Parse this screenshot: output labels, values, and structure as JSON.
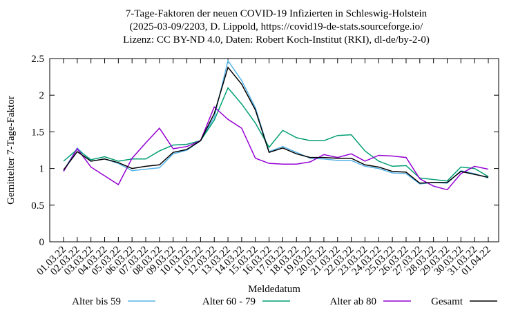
{
  "chart_data": {
    "type": "line",
    "title": [
      "7-Tage-Faktoren der neuen COVID-19 Infizierten in Schleswig-Holstein",
      "(2025-03-09/2203, D. Lippold, https://covid19-de-stats.sourceforge.io/",
      "Lizenz: CC BY-ND 4.0, Daten: Robert Koch-Institut (RKI), dl-de/by-2-0)"
    ],
    "xlabel": "Meldedatum",
    "ylabel": "Gemittelter 7-Tage-Faktor",
    "categories": [
      "01.03.22",
      "02.03.22",
      "03.03.22",
      "04.03.22",
      "05.03.22",
      "06.03.22",
      "07.03.22",
      "08.03.22",
      "09.03.22",
      "10.03.22",
      "11.03.22",
      "12.03.22",
      "13.03.22",
      "14.03.22",
      "15.03.22",
      "16.03.22",
      "17.03.22",
      "18.03.22",
      "19.03.22",
      "20.03.22",
      "21.03.22",
      "22.03.22",
      "23.03.22",
      "24.03.22",
      "25.03.22",
      "26.03.22",
      "27.03.22",
      "28.03.22",
      "29.03.22",
      "30.03.22",
      "31.03.22",
      "01.04.22"
    ],
    "ylim": [
      0,
      2.5
    ],
    "yticks": [
      0,
      0.5,
      1,
      1.5,
      2,
      2.5
    ],
    "grid": false,
    "legend": "bottom",
    "series": [
      {
        "name": "Alter bis 59",
        "color": "#56b4e9",
        "values": [
          0.97,
          1.28,
          1.1,
          1.13,
          1.07,
          0.97,
          0.99,
          1.01,
          1.2,
          1.25,
          1.38,
          1.7,
          2.47,
          2.2,
          1.83,
          1.23,
          1.3,
          1.22,
          1.14,
          1.13,
          1.11,
          1.11,
          1.03,
          1.0,
          0.94,
          0.93,
          0.79,
          0.81,
          0.8,
          0.97,
          0.93,
          0.87
        ]
      },
      {
        "name": "Alter 60 - 79",
        "color": "#009e73",
        "values": [
          1.1,
          1.26,
          1.12,
          1.16,
          1.1,
          1.13,
          1.13,
          1.24,
          1.32,
          1.33,
          1.38,
          1.66,
          2.1,
          1.88,
          1.62,
          1.29,
          1.52,
          1.42,
          1.38,
          1.38,
          1.45,
          1.46,
          1.24,
          1.1,
          1.03,
          1.04,
          0.87,
          0.85,
          0.83,
          1.02,
          1.0,
          0.89
        ]
      },
      {
        "name": "Alter ab 80",
        "color": "#9400d3",
        "values": [
          0.96,
          1.27,
          1.02,
          0.9,
          0.78,
          1.14,
          1.35,
          1.55,
          1.27,
          1.3,
          1.38,
          1.84,
          1.67,
          1.55,
          1.14,
          1.07,
          1.06,
          1.06,
          1.09,
          1.19,
          1.15,
          1.2,
          1.1,
          1.18,
          1.17,
          1.15,
          0.86,
          0.76,
          0.71,
          0.93,
          1.03,
          0.99
        ]
      },
      {
        "name": "Gesamt",
        "color": "#000000",
        "values": [
          0.98,
          1.23,
          1.1,
          1.13,
          1.08,
          1.0,
          1.03,
          1.05,
          1.22,
          1.26,
          1.38,
          1.75,
          2.38,
          2.15,
          1.8,
          1.22,
          1.28,
          1.2,
          1.15,
          1.15,
          1.14,
          1.14,
          1.05,
          1.02,
          0.96,
          0.95,
          0.8,
          0.81,
          0.81,
          0.96,
          0.92,
          0.88
        ]
      }
    ]
  }
}
